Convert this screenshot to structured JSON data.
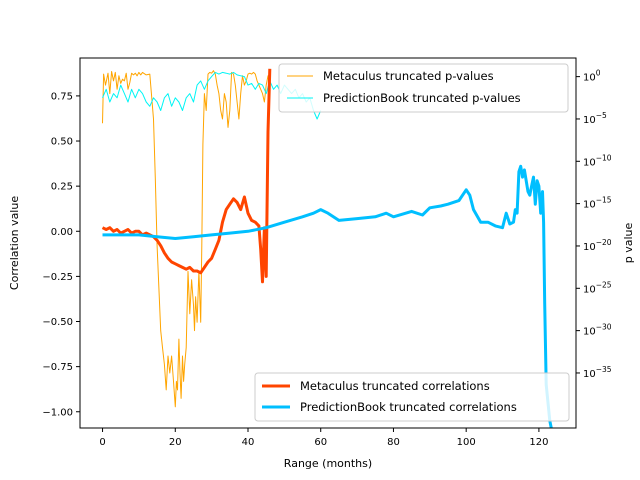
{
  "chart_data": {
    "type": "line",
    "xlabel": "Range (months)",
    "ylabel": "Correlation value",
    "y2label": "p value",
    "xlim": [
      -6.2,
      130.2
    ],
    "ylim": [
      -1.09,
      0.96
    ],
    "y2scale": "log",
    "y2lim_log10": [
      -41.5,
      2.2
    ],
    "x_ticks": [
      0,
      20,
      40,
      60,
      80,
      100,
      120
    ],
    "x_tick_labels": [
      "0",
      "20",
      "40",
      "60",
      "80",
      "100",
      "120"
    ],
    "y_ticks": [
      0.75,
      0.5,
      0.25,
      0.0,
      -0.25,
      -0.5,
      -0.75,
      -1.0
    ],
    "y_tick_labels": [
      "0.75",
      "0.50",
      "0.25",
      "0.00",
      "−0.25",
      "−0.50",
      "−0.75",
      "−1.00"
    ],
    "y2_ticks_exp": [
      0,
      -5,
      -10,
      -15,
      -20,
      -25,
      -30,
      -35
    ],
    "y2_tick_base": "10",
    "y2_tick_exps": [
      "0",
      "−5",
      "−10",
      "−15",
      "−20",
      "−25",
      "−30",
      "−35"
    ],
    "legend_top": {
      "placement": "upper right",
      "entries": [
        "Metaculus truncated p-values",
        "PredictionBook truncated p-values"
      ]
    },
    "legend_bottom": {
      "placement": "lower right",
      "entries": [
        "Metaculus truncated correlations",
        "PredictionBook truncated correlations"
      ]
    },
    "series": [
      {
        "name": "Metaculus truncated p-values",
        "axis": "right",
        "color": "#FFA500",
        "width": 1,
        "x": [
          0,
          0.3,
          0.8,
          1.5,
          2,
          2.5,
          3,
          3.5,
          4,
          4.5,
          5,
          5.5,
          6,
          6.5,
          7,
          7.5,
          8,
          8.5,
          9,
          9.5,
          10,
          10.5,
          11,
          12,
          13,
          14,
          14.5,
          15,
          15.5,
          16,
          16.5,
          17,
          17.5,
          18,
          18.5,
          19,
          19.5,
          20,
          20.3,
          20.6,
          21,
          21.3,
          21.6,
          22,
          22.3,
          22.6,
          23,
          23.5,
          24,
          24.5,
          25,
          25.3,
          25.6,
          26,
          26.5,
          27,
          27.3,
          27.6,
          28,
          28.5,
          29,
          29.5,
          30,
          30.5,
          31,
          31.5,
          32,
          32.5,
          33,
          33.5,
          34,
          34.5,
          35,
          35.5,
          36,
          36.5,
          37,
          37.5,
          38,
          38.5,
          39,
          39.5,
          40,
          40.5,
          41,
          41.5,
          42,
          42.5,
          43,
          43.5,
          44,
          44.5,
          45,
          45.5,
          46
        ],
        "y": [
          -5.5,
          0.3,
          -1.0,
          0.4,
          -2.0,
          0.6,
          -0.5,
          0.5,
          -1.5,
          0.1,
          -0.8,
          -0.3,
          -0.5,
          0.4,
          -1.5,
          -0.7,
          0.4,
          0.2,
          0.4,
          0.1,
          0.5,
          0.2,
          0.5,
          0.2,
          0.3,
          -5,
          -12,
          -20,
          -25,
          -30,
          -32,
          -34,
          -37,
          -33,
          -35,
          -33,
          -36,
          -39,
          -36,
          -37,
          -31,
          -35,
          -38,
          -33,
          -36,
          -34,
          -32,
          -23,
          -28,
          -24,
          -27,
          -30,
          -26,
          -29,
          -23,
          -29,
          -20,
          -8,
          -2,
          -4,
          0.3,
          0.5,
          0.4,
          0.7,
          0.3,
          -1.0,
          -2.0,
          -4,
          -5,
          -2,
          -3,
          -6,
          -4,
          0.5,
          0.3,
          -1.0,
          -3,
          -5,
          -2,
          0.1,
          -1.0,
          -0.5,
          0.3,
          0.4,
          0.3,
          0.5,
          0.3,
          -0.5,
          -1.0,
          -1.5,
          -2.0,
          -3,
          -1.0,
          0.1,
          0.2
        ]
      },
      {
        "name": "PredictionBook truncated p-values",
        "axis": "right",
        "color": "#00F5F5",
        "width": 1,
        "x": [
          0,
          1,
          2,
          3,
          4,
          5,
          6,
          7,
          8,
          9,
          10,
          11,
          12,
          13,
          14,
          15,
          16,
          17,
          18,
          19,
          20,
          21,
          22,
          23,
          24,
          25,
          26,
          27,
          28,
          29,
          30,
          31,
          32,
          33,
          34,
          35,
          36,
          37,
          38,
          39,
          40,
          41,
          42,
          43,
          44,
          45,
          46,
          47,
          48,
          49,
          50,
          51,
          52,
          53,
          54,
          55,
          56,
          57,
          58,
          59,
          60
        ],
        "y": [
          -2.5,
          -1.5,
          -3.0,
          -2.0,
          -2.5,
          -1.0,
          -2.0,
          -3.0,
          -1.5,
          -2.5,
          -1.5,
          -2.0,
          -3.0,
          -3.5,
          -2.5,
          -3.0,
          -4.0,
          -2.5,
          -2.0,
          -3.5,
          -2.5,
          -3.0,
          -4.0,
          -2.5,
          -2.0,
          -3.0,
          -1.0,
          -0.5,
          -1.5,
          -0.5,
          0.0,
          0.5,
          0.3,
          0.5,
          0.4,
          0.3,
          0.5,
          0.2,
          0.1,
          0.0,
          -1.0,
          -0.8,
          -1.5,
          -0.8,
          -1.0,
          -2.0,
          -0.5,
          -1.5,
          -1.0,
          -2.0,
          -1.0,
          -1.5,
          -2.0,
          -1.5,
          -2.5,
          -2.0,
          -3.0,
          -2.5,
          -4.0,
          -5.0,
          -4.0
        ]
      },
      {
        "name": "Metaculus truncated correlations",
        "axis": "left",
        "color": "#FF4500",
        "width": 3,
        "x": [
          0,
          1,
          2,
          3,
          4,
          5,
          6,
          7,
          8,
          9,
          10,
          11,
          12,
          13,
          14,
          15,
          16,
          17,
          18,
          19,
          20,
          21,
          22,
          23,
          24,
          25,
          26,
          27,
          28,
          29,
          30,
          31,
          32,
          33,
          34,
          35,
          36,
          37,
          38,
          39,
          40,
          41,
          42,
          43,
          43.5,
          44,
          44.5,
          45,
          45.5,
          46
        ],
        "y": [
          0.02,
          0.01,
          0.02,
          0.0,
          0.01,
          -0.01,
          0.0,
          0.01,
          -0.01,
          0.0,
          0.0,
          -0.02,
          -0.01,
          -0.02,
          -0.03,
          -0.05,
          -0.08,
          -0.12,
          -0.15,
          -0.17,
          -0.18,
          -0.19,
          -0.2,
          -0.21,
          -0.2,
          -0.22,
          -0.22,
          -0.23,
          -0.2,
          -0.17,
          -0.15,
          -0.1,
          -0.05,
          0.05,
          0.12,
          0.15,
          0.18,
          0.16,
          0.12,
          0.19,
          0.1,
          0.06,
          0.05,
          0.03,
          -0.1,
          -0.28,
          0.02,
          -0.25,
          0.55,
          0.9
        ]
      },
      {
        "name": "PredictionBook truncated correlations",
        "axis": "left",
        "color": "#00BFFF",
        "width": 3,
        "x": [
          0,
          5,
          10,
          15,
          20,
          25,
          30,
          35,
          40,
          45,
          50,
          55,
          58,
          60,
          62,
          65,
          70,
          75,
          78,
          80,
          85,
          88,
          90,
          93,
          95,
          98,
          100,
          101,
          102,
          104,
          106,
          108,
          110,
          111,
          112,
          113,
          113.5,
          114,
          114.5,
          115,
          115.5,
          116,
          116.5,
          117,
          117.5,
          118,
          118.5,
          119,
          119.5,
          120,
          120.5,
          121,
          121.3,
          121.6,
          122,
          122.5,
          123,
          124
        ],
        "y": [
          -0.02,
          -0.02,
          -0.02,
          -0.03,
          -0.04,
          -0.03,
          -0.02,
          -0.01,
          0.0,
          0.02,
          0.05,
          0.08,
          0.1,
          0.12,
          0.1,
          0.06,
          0.07,
          0.08,
          0.1,
          0.08,
          0.11,
          0.09,
          0.13,
          0.14,
          0.15,
          0.17,
          0.23,
          0.2,
          0.12,
          0.05,
          0.05,
          0.03,
          0.02,
          0.1,
          0.04,
          0.05,
          0.12,
          0.1,
          0.33,
          0.36,
          0.3,
          0.34,
          0.28,
          0.22,
          0.2,
          0.25,
          0.3,
          0.15,
          0.28,
          0.25,
          0.1,
          0.22,
          0.05,
          -0.4,
          -0.85,
          -0.95,
          -1.05,
          -1.15
        ]
      }
    ]
  }
}
